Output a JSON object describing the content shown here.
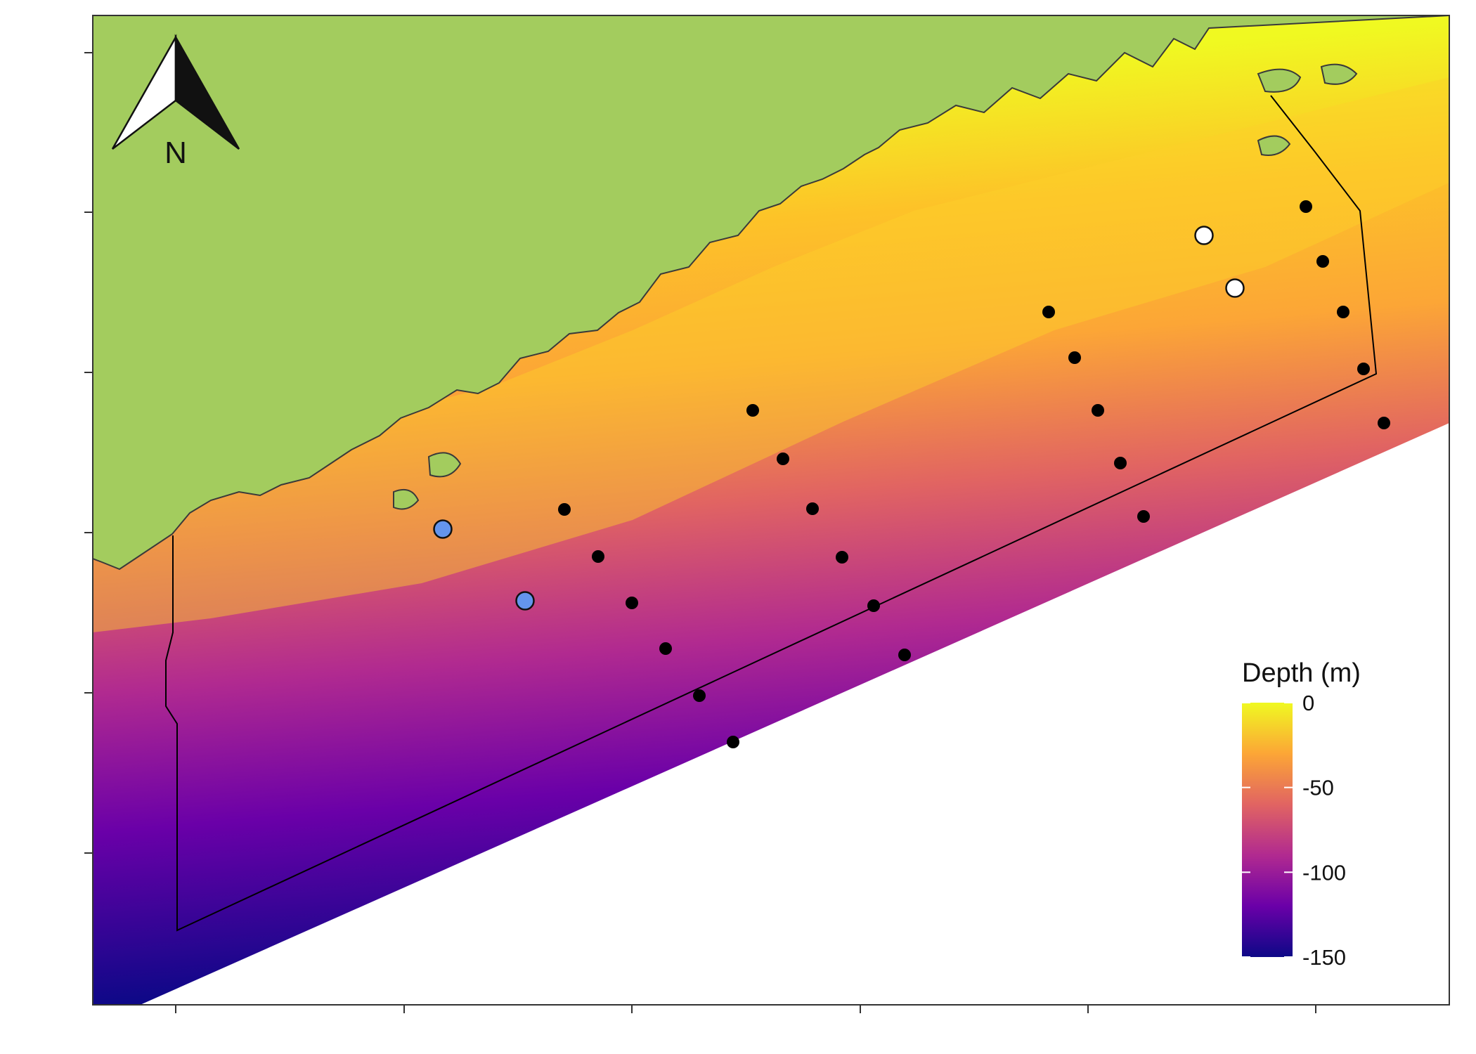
{
  "colors": {
    "land": "#a3cc5e",
    "coastline": "#3a3a3a",
    "boundary": "#000000",
    "no_data": "#ffffff",
    "frame": "#333333",
    "depth_ramp": [
      "#f0f921",
      "#fca636",
      "#e16462",
      "#b12a90",
      "#6a00a8",
      "#0d0887"
    ]
  },
  "north_arrow": {
    "label": "N"
  },
  "legend": {
    "title": "Depth (m)",
    "ticks": [
      {
        "value": 0,
        "label": "0"
      },
      {
        "value": -50,
        "label": "-50"
      },
      {
        "value": -100,
        "label": "-100"
      },
      {
        "value": -150,
        "label": "-150"
      }
    ],
    "range": [
      -150,
      0
    ]
  },
  "stations": {
    "groups": [
      {
        "name": "",
        "color": "#000000",
        "style": "small-filled"
      },
      {
        "name": "",
        "color": "#6495ed",
        "style": "large-outlined"
      },
      {
        "name": "",
        "color": "#ffffff",
        "style": "large-outlined"
      }
    ]
  },
  "axes": {
    "x_ticks": 6,
    "y_ticks": 6,
    "tick_labels_shown": false
  }
}
